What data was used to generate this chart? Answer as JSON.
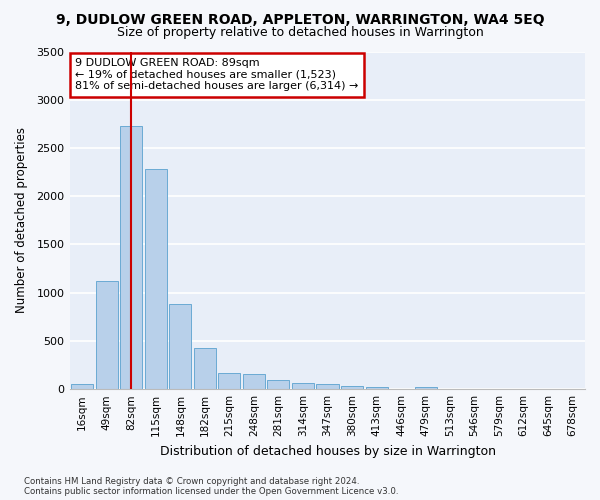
{
  "title": "9, DUDLOW GREEN ROAD, APPLETON, WARRINGTON, WA4 5EQ",
  "subtitle": "Size of property relative to detached houses in Warrington",
  "xlabel": "Distribution of detached houses by size in Warrington",
  "ylabel": "Number of detached properties",
  "categories": [
    "16sqm",
    "49sqm",
    "82sqm",
    "115sqm",
    "148sqm",
    "182sqm",
    "215sqm",
    "248sqm",
    "281sqm",
    "314sqm",
    "347sqm",
    "380sqm",
    "413sqm",
    "446sqm",
    "479sqm",
    "513sqm",
    "546sqm",
    "579sqm",
    "612sqm",
    "645sqm",
    "678sqm"
  ],
  "values": [
    50,
    1120,
    2730,
    2280,
    880,
    430,
    170,
    155,
    90,
    65,
    50,
    35,
    25,
    0,
    20,
    0,
    0,
    0,
    0,
    0,
    0
  ],
  "bar_color": "#b8d0ea",
  "bar_edge_color": "#6aaad4",
  "vline_x_idx": 2,
  "vline_color": "#cc0000",
  "annotation_text": "9 DUDLOW GREEN ROAD: 89sqm\n← 19% of detached houses are smaller (1,523)\n81% of semi-detached houses are larger (6,314) →",
  "annotation_box_color": "#ffffff",
  "annotation_border_color": "#cc0000",
  "ylim": [
    0,
    3500
  ],
  "yticks": [
    0,
    500,
    1000,
    1500,
    2000,
    2500,
    3000,
    3500
  ],
  "fig_bg_color": "#f5f7fb",
  "axes_bg_color": "#e8eef8",
  "grid_color": "#ffffff",
  "footer_line1": "Contains HM Land Registry data © Crown copyright and database right 2024.",
  "footer_line2": "Contains public sector information licensed under the Open Government Licence v3.0."
}
